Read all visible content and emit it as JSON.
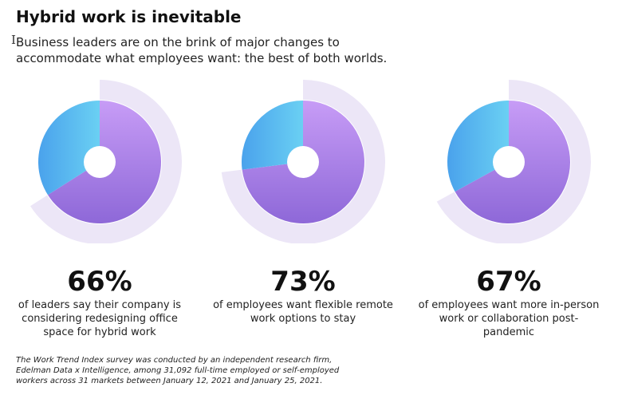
{
  "header": {
    "title": "Hybrid work is inevitable",
    "subtitle": "Business leaders are on the brink of major changes to accommodate what employees want: the best of both worlds."
  },
  "cursor_glyph": "I",
  "chart_data": [
    {
      "type": "pie",
      "value": 66,
      "value_label": "66%",
      "description": "of leaders say their company is considering redesigning office space for hybrid work"
    },
    {
      "type": "pie",
      "value": 73,
      "value_label": "73%",
      "description": "of employees want flexible remote work options to stay"
    },
    {
      "type": "pie",
      "value": 67,
      "value_label": "67%",
      "description": "of employees want more in-person work or collaboration post-pandemic"
    }
  ],
  "colors": {
    "highlight_start": "#c79cf6",
    "highlight_end": "#8e68d8",
    "remainder_start": "#6ad0f3",
    "remainder_end": "#4aa2ec",
    "outer_ring": "#ece6f7"
  },
  "footnote": "The Work Trend Index survey was conducted by an independent research firm, Edelman Data x Intelligence, among 31,092 full-time employed or self-employed workers across 31 markets between January 12, 2021 and January 25, 2021."
}
